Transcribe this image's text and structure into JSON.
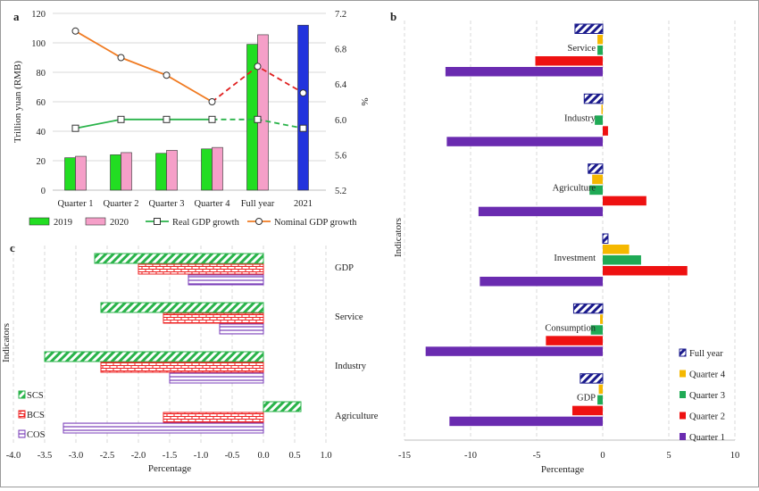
{
  "chart_data": [
    {
      "panel_label": "a",
      "type": "bar",
      "categories": [
        "Quarter 1",
        "Quarter 2",
        "Quarter 3",
        "Quarter 4",
        "Full year",
        "2021"
      ],
      "ylabel": "Trillion yuan (RMB)",
      "y2label": "%",
      "ylim": [
        0,
        120
      ],
      "yticks": [
        "0",
        "20",
        "40",
        "60",
        "80",
        "100",
        "120"
      ],
      "y2lim": [
        5.2,
        7.2
      ],
      "y2ticks": [
        "5.2",
        "5.6",
        "6.0",
        "6.4",
        "6.8",
        "7.2"
      ],
      "series": [
        {
          "name": "2019",
          "values": [
            22,
            24,
            25,
            28,
            99,
            null
          ],
          "color": "#22dd22"
        },
        {
          "name": "2020",
          "values": [
            23,
            25.5,
            27,
            29,
            105.5,
            null
          ],
          "color": "#f59fc8"
        },
        {
          "name": "2021",
          "values": [
            null,
            null,
            null,
            null,
            null,
            112
          ],
          "color": "#2233dd",
          "legend": false
        },
        {
          "name": "Real GDP growth",
          "type": "line",
          "axis": "right",
          "values": [
            5.9,
            6.0,
            6.0,
            6.0,
            6.0,
            5.9
          ],
          "color": "#2ab34a",
          "dashed_after": "Quarter 4"
        },
        {
          "name": "Nominal GDP growth",
          "type": "line",
          "axis": "right",
          "values": [
            7.0,
            6.7,
            6.5,
            6.2,
            6.6,
            6.3
          ],
          "color": "#f07b22",
          "dashed_color": "#e02020",
          "dashed_after": "Quarter 4"
        }
      ],
      "legend_position": "bottom"
    },
    {
      "panel_label": "b",
      "type": "bar",
      "orientation": "horizontal",
      "categories": [
        "Service",
        "Industry",
        "Agriculture",
        "Investment",
        "Consumption",
        "GDP"
      ],
      "xlabel": "Percentage",
      "ylabel": "Indicators",
      "xlim": [
        -15,
        10
      ],
      "xticks": [
        "-15",
        "-10",
        "-5",
        "0",
        "5",
        "10"
      ],
      "series": [
        {
          "name": "Full year",
          "values": [
            -2.1,
            -1.4,
            -1.1,
            0.4,
            -2.2,
            -1.7
          ],
          "color": "#1a1a8c",
          "pattern": "hatch"
        },
        {
          "name": "Quarter 4",
          "values": [
            -0.4,
            -0.1,
            -0.8,
            2.0,
            -0.2,
            -0.3
          ],
          "color": "#f5b800"
        },
        {
          "name": "Quarter 3",
          "values": [
            -0.4,
            -0.6,
            -1.0,
            2.9,
            -0.9,
            -0.4
          ],
          "color": "#1faa55"
        },
        {
          "name": "Quarter 2",
          "values": [
            -5.1,
            0.4,
            3.3,
            6.4,
            -4.3,
            -2.3
          ],
          "color": "#ee1111"
        },
        {
          "name": "Quarter 1",
          "values": [
            -11.9,
            -11.8,
            -9.4,
            -9.3,
            -13.4,
            -11.6
          ],
          "color": "#6a2bb0"
        }
      ],
      "legend_position": "bottom-right"
    },
    {
      "panel_label": "c",
      "type": "bar",
      "orientation": "horizontal",
      "categories": [
        "GDP",
        "Service",
        "Industry",
        "Agriculture"
      ],
      "xlabel": "Percentage",
      "ylabel": "Indicators",
      "xlim": [
        -4.0,
        1.0
      ],
      "xticks": [
        "-4.0",
        "-3.5",
        "-3.0",
        "-2.5",
        "-2.0",
        "-1.5",
        "-1.0",
        "-0.5",
        "0.0",
        "0.5",
        "1.0"
      ],
      "series": [
        {
          "name": "SCS",
          "values": [
            -2.7,
            -2.6,
            -3.5,
            0.6
          ],
          "color": "#2ab34a",
          "pattern": "diagonal"
        },
        {
          "name": "BCS",
          "values": [
            -2.0,
            -1.6,
            -2.6,
            -1.6
          ],
          "color": "#ee2222",
          "pattern": "brick"
        },
        {
          "name": "COS",
          "values": [
            -1.2,
            -0.7,
            -1.5,
            -3.2
          ],
          "color": "#7a3db8",
          "pattern": "horizontal-lines"
        }
      ],
      "legend_position": "left"
    }
  ]
}
